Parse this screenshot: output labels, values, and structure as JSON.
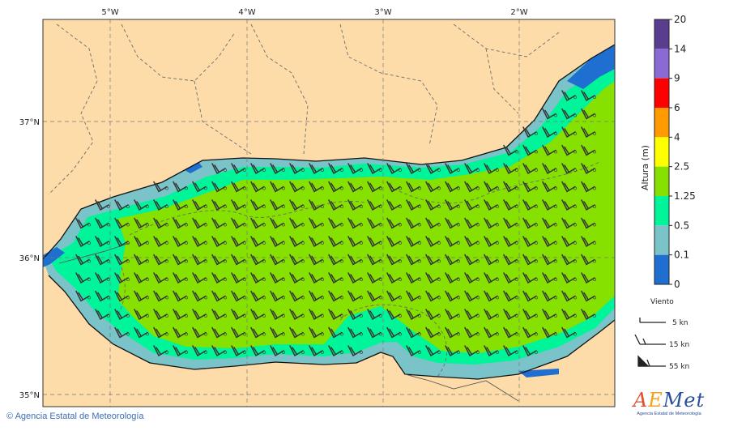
{
  "map": {
    "lon_labels": [
      "5°W",
      "4°W",
      "3°W",
      "2°W"
    ],
    "lat_labels": [
      "37°N",
      "36°N",
      "35°N"
    ]
  },
  "colorbar": {
    "title": "Altura (m)",
    "ticks": [
      "20",
      "14",
      "9",
      "6",
      "4",
      "2.5",
      "1.25",
      "0.5",
      "0.1",
      "0"
    ],
    "colors": [
      "#5a3d8f",
      "#8b6ad4",
      "#ff0000",
      "#ff9a00",
      "#ffff00",
      "#86e000",
      "#00f59a",
      "#7ac3c9",
      "#1f6fd1"
    ]
  },
  "wind_legend": {
    "title": "Viento",
    "items": [
      {
        "label": "5 kn"
      },
      {
        "label": "15 kn"
      },
      {
        "label": "55 kn"
      }
    ]
  },
  "colors": {
    "land": "#fddcaa",
    "sea_mid": "#86e000",
    "sea_low": "#00f59a",
    "sea_coast": "#7ac3c9",
    "sea_calm": "#1f6fd1"
  },
  "credit": "Agencia Estatal de Meteorología",
  "logo": {
    "word": "AEMet",
    "sub": "Agencia Estatal de Meteorología"
  }
}
